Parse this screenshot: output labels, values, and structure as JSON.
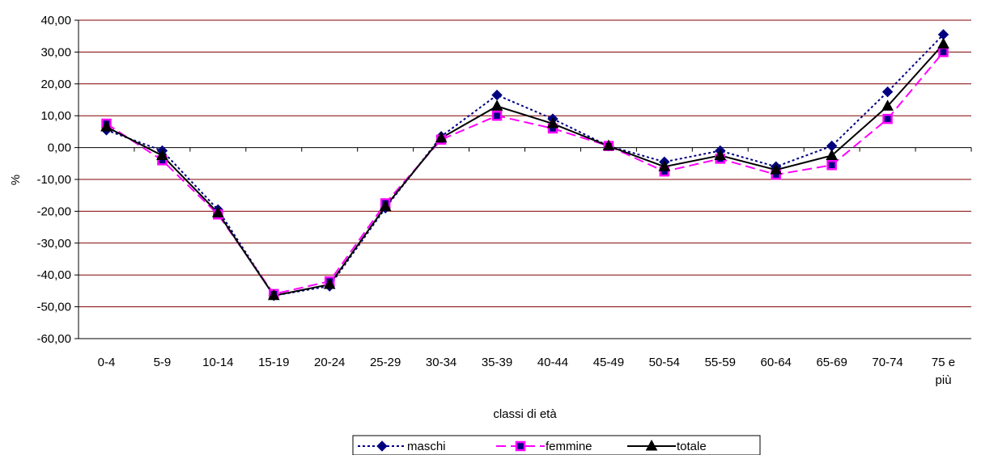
{
  "chart_data": {
    "type": "line",
    "title": "",
    "xlabel": "classi di età",
    "ylabel": "%",
    "ylim": [
      -60,
      40
    ],
    "ystep": 10,
    "grid": true,
    "legend_position": "bottom",
    "categories": [
      "0-4",
      "5-9",
      "10-14",
      "15-19",
      "20-24",
      "25-29",
      "30-34",
      "35-39",
      "40-44",
      "45-49",
      "50-54",
      "55-59",
      "60-64",
      "65-69",
      "70-74",
      "75 e più"
    ],
    "y_tick_labels": [
      "40,00",
      "30,00",
      "20,00",
      "10,00",
      "0,00",
      "-10,00",
      "-20,00",
      "-30,00",
      "-40,00",
      "-50,00",
      "-60,00"
    ],
    "series": [
      {
        "name": "maschi",
        "color": "#000080",
        "style": "dotted",
        "marker": "diamond",
        "values": [
          5.5,
          -1.0,
          -19.5,
          -46.5,
          -43.5,
          -19.0,
          3.5,
          16.5,
          9.0,
          0.5,
          -4.5,
          -1.0,
          -6.0,
          0.5,
          17.5,
          35.5
        ]
      },
      {
        "name": "femmine",
        "color": "#ff00ff",
        "style": "dashed",
        "marker": "square",
        "values": [
          7.5,
          -4.0,
          -21.0,
          -46.0,
          -42.0,
          -17.5,
          2.5,
          10.0,
          6.0,
          0.5,
          -7.5,
          -3.5,
          -8.5,
          -5.5,
          9.0,
          30.0
        ]
      },
      {
        "name": "totale",
        "color": "#000000",
        "style": "solid",
        "marker": "triangle",
        "values": [
          6.5,
          -2.5,
          -20.5,
          -46.5,
          -43.0,
          -18.5,
          3.0,
          13.0,
          7.5,
          0.5,
          -6.0,
          -2.5,
          -7.0,
          -2.5,
          13.0,
          32.5
        ]
      }
    ]
  }
}
